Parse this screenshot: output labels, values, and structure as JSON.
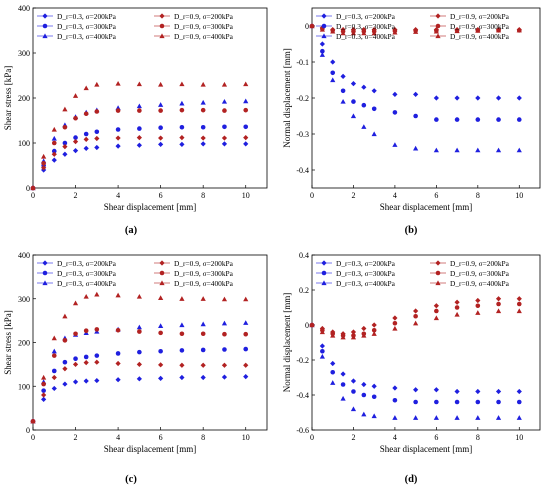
{
  "panel_labels": [
    "(a)",
    "(b)",
    "(c)",
    "(d)"
  ],
  "chart_data": [
    {
      "type": "scatter",
      "panel": "(a)",
      "xlabel": "Shear displacement [mm]",
      "ylabel": "Shear stress [kPa]",
      "xlim": [
        0,
        11
      ],
      "ylim": [
        0,
        400
      ],
      "xticks": [
        0,
        2,
        4,
        6,
        8,
        10
      ],
      "yticks": [
        0,
        100,
        200,
        300,
        400
      ],
      "legend_position": "top",
      "series": [
        {
          "name": "D_r=0.3, σ=200kPa",
          "symbol": "diamond",
          "color": "#1f1fdf",
          "x": [
            0,
            0.5,
            1,
            1.5,
            2,
            2.5,
            3,
            4,
            5,
            6,
            7,
            8,
            9,
            10
          ],
          "y": [
            0,
            40,
            62,
            75,
            83,
            88,
            90,
            93,
            95,
            97,
            97,
            98,
            98,
            98
          ]
        },
        {
          "name": "D_r=0.3, σ=300kPa",
          "symbol": "circle",
          "color": "#1f1fdf",
          "x": [
            0,
            0.5,
            1,
            1.5,
            2,
            2.5,
            3,
            4,
            5,
            6,
            7,
            8,
            9,
            10
          ],
          "y": [
            0,
            50,
            82,
            100,
            112,
            120,
            125,
            130,
            132,
            134,
            135,
            135,
            136,
            136
          ]
        },
        {
          "name": "D_r=0.3, σ=400kPa",
          "symbol": "triangle",
          "color": "#1f1fdf",
          "x": [
            0,
            0.5,
            1,
            1.5,
            2,
            2.5,
            3,
            4,
            5,
            6,
            7,
            8,
            9,
            10
          ],
          "y": [
            0,
            60,
            110,
            140,
            158,
            168,
            173,
            178,
            182,
            185,
            188,
            190,
            192,
            193
          ]
        },
        {
          "name": "D_r=0.9, σ=200kPa",
          "symbol": "diamond",
          "color": "#b22222",
          "x": [
            0,
            0.5,
            1,
            1.5,
            2,
            2.5,
            3,
            4,
            5,
            6,
            7,
            8,
            9,
            10
          ],
          "y": [
            0,
            45,
            75,
            92,
            103,
            108,
            110,
            111,
            112,
            111,
            112,
            111,
            111,
            112
          ]
        },
        {
          "name": "D_r=0.9, σ=300kPa",
          "symbol": "circle",
          "color": "#b22222",
          "x": [
            0,
            0.5,
            1,
            1.5,
            2,
            2.5,
            3,
            4,
            5,
            6,
            7,
            8,
            9,
            10
          ],
          "y": [
            0,
            55,
            100,
            135,
            155,
            165,
            170,
            172,
            172,
            172,
            173,
            173,
            172,
            173
          ]
        },
        {
          "name": "D_r=0.9, σ=400kPa",
          "symbol": "triangle",
          "color": "#b22222",
          "x": [
            0,
            0.5,
            1,
            1.5,
            2,
            2.5,
            3,
            4,
            5,
            6,
            7,
            8,
            9,
            10
          ],
          "y": [
            0,
            70,
            130,
            175,
            205,
            222,
            230,
            232,
            231,
            230,
            231,
            230,
            230,
            231
          ]
        }
      ]
    },
    {
      "type": "scatter",
      "panel": "(b)",
      "xlabel": "Shear displacement [mm]",
      "ylabel": "Normal displacement [mm]",
      "xlim": [
        0,
        11
      ],
      "ylim": [
        -0.45,
        0.05
      ],
      "xticks": [
        0,
        2,
        4,
        6,
        8,
        10
      ],
      "yticks": [
        0.0,
        -0.1,
        -0.2,
        -0.3,
        -0.4
      ],
      "legend_position": "top",
      "series": [
        {
          "name": "D_r=0.3, σ=200kPa",
          "symbol": "diamond",
          "color": "#1f1fdf",
          "x": [
            0,
            0.5,
            1,
            1.5,
            2,
            2.5,
            3,
            4,
            5,
            6,
            7,
            8,
            9,
            10
          ],
          "y": [
            0,
            -0.05,
            -0.1,
            -0.14,
            -0.16,
            -0.17,
            -0.18,
            -0.19,
            -0.19,
            -0.2,
            -0.2,
            -0.2,
            -0.2,
            -0.2
          ]
        },
        {
          "name": "D_r=0.3, σ=300kPa",
          "symbol": "circle",
          "color": "#1f1fdf",
          "x": [
            0,
            0.5,
            1,
            1.5,
            2,
            2.5,
            3,
            4,
            5,
            6,
            7,
            8,
            9,
            10
          ],
          "y": [
            0,
            -0.07,
            -0.13,
            -0.18,
            -0.21,
            -0.22,
            -0.23,
            -0.24,
            -0.25,
            -0.26,
            -0.26,
            -0.26,
            -0.26,
            -0.26
          ]
        },
        {
          "name": "D_r=0.3, σ=400kPa",
          "symbol": "triangle",
          "color": "#1f1fdf",
          "x": [
            0,
            0.5,
            1,
            1.5,
            2,
            2.5,
            3,
            4,
            5,
            6,
            7,
            8,
            9,
            10
          ],
          "y": [
            0,
            -0.08,
            -0.15,
            -0.21,
            -0.25,
            -0.28,
            -0.3,
            -0.33,
            -0.34,
            -0.345,
            -0.345,
            -0.345,
            -0.345,
            -0.345
          ]
        },
        {
          "name": "D_r=0.9, σ=200kPa",
          "symbol": "diamond",
          "color": "#b22222",
          "x": [
            0,
            0.5,
            1,
            1.5,
            2,
            2.5,
            3,
            4,
            5,
            6,
            7,
            8,
            9,
            10
          ],
          "y": [
            0,
            -0.005,
            -0.01,
            -0.01,
            -0.01,
            -0.01,
            -0.01,
            -0.01,
            -0.01,
            -0.01,
            -0.01,
            -0.01,
            -0.01,
            -0.01
          ]
        },
        {
          "name": "D_r=0.9, σ=300kPa",
          "symbol": "circle",
          "color": "#b22222",
          "x": [
            0,
            0.5,
            1,
            1.5,
            2,
            2.5,
            3,
            4,
            5,
            6,
            7,
            8,
            9,
            10
          ],
          "y": [
            0,
            -0.008,
            -0.012,
            -0.015,
            -0.015,
            -0.015,
            -0.015,
            -0.014,
            -0.013,
            -0.013,
            -0.012,
            -0.012,
            -0.012,
            -0.012
          ]
        },
        {
          "name": "D_r=0.9, σ=400kPa",
          "symbol": "triangle",
          "color": "#b22222",
          "x": [
            0,
            0.5,
            1,
            1.5,
            2,
            2.5,
            3,
            4,
            5,
            6,
            7,
            8,
            9,
            10
          ],
          "y": [
            0,
            -0.01,
            -0.015,
            -0.02,
            -0.02,
            -0.02,
            -0.02,
            -0.018,
            -0.016,
            -0.015,
            -0.014,
            -0.013,
            -0.012,
            -0.012
          ]
        }
      ]
    },
    {
      "type": "scatter",
      "panel": "(c)",
      "xlabel": "Shear displacement [mm]",
      "ylabel": "Shear stress [kPa]",
      "xlim": [
        0,
        11
      ],
      "ylim": [
        0,
        400
      ],
      "xticks": [
        0,
        2,
        4,
        6,
        8,
        10
      ],
      "yticks": [
        0,
        100,
        200,
        300,
        400
      ],
      "legend_position": "top",
      "series": [
        {
          "name": "D_r=0.3, σ=200kPa",
          "symbol": "diamond",
          "color": "#1f1fdf",
          "x": [
            0,
            0.5,
            1,
            1.5,
            2,
            2.5,
            3,
            4,
            5,
            6,
            7,
            8,
            9,
            10
          ],
          "y": [
            20,
            70,
            95,
            105,
            110,
            112,
            113,
            115,
            117,
            118,
            120,
            120,
            121,
            122
          ]
        },
        {
          "name": "D_r=0.3, σ=300kPa",
          "symbol": "circle",
          "color": "#1f1fdf",
          "x": [
            0,
            0.5,
            1,
            1.5,
            2,
            2.5,
            3,
            4,
            5,
            6,
            7,
            8,
            9,
            10
          ],
          "y": [
            20,
            90,
            135,
            155,
            163,
            167,
            170,
            175,
            178,
            180,
            182,
            183,
            184,
            185
          ]
        },
        {
          "name": "D_r=0.3, σ=400kPa",
          "symbol": "triangle",
          "color": "#1f1fdf",
          "x": [
            0,
            0.5,
            1,
            1.5,
            2,
            2.5,
            3,
            4,
            5,
            6,
            7,
            8,
            9,
            10
          ],
          "y": [
            20,
            110,
            180,
            210,
            218,
            222,
            225,
            230,
            235,
            238,
            240,
            242,
            244,
            245
          ]
        },
        {
          "name": "D_r=0.9, σ=200kPa",
          "symbol": "diamond",
          "color": "#b22222",
          "x": [
            0,
            0.5,
            1,
            1.5,
            2,
            2.5,
            3,
            4,
            5,
            6,
            7,
            8,
            9,
            10
          ],
          "y": [
            20,
            80,
            120,
            140,
            150,
            154,
            155,
            152,
            150,
            149,
            148,
            148,
            148,
            148
          ]
        },
        {
          "name": "D_r=0.9, σ=300kPa",
          "symbol": "circle",
          "color": "#b22222",
          "x": [
            0,
            0.5,
            1,
            1.5,
            2,
            2.5,
            3,
            4,
            5,
            6,
            7,
            8,
            9,
            10
          ],
          "y": [
            20,
            105,
            170,
            205,
            220,
            227,
            230,
            228,
            225,
            222,
            220,
            220,
            219,
            219
          ]
        },
        {
          "name": "D_r=0.9, σ=400kPa",
          "symbol": "triangle",
          "color": "#b22222",
          "x": [
            0,
            0.5,
            1,
            1.5,
            2,
            2.5,
            3,
            4,
            5,
            6,
            7,
            8,
            9,
            10
          ],
          "y": [
            20,
            120,
            210,
            260,
            290,
            305,
            310,
            308,
            305,
            302,
            300,
            300,
            299,
            299
          ]
        }
      ]
    },
    {
      "type": "scatter",
      "panel": "(d)",
      "xlabel": "Shear displacement [mm]",
      "ylabel": "Normal displacement [mm]",
      "xlim": [
        0,
        11
      ],
      "ylim": [
        -0.6,
        0.4
      ],
      "xticks": [
        0,
        2,
        4,
        6,
        8,
        10
      ],
      "yticks": [
        0.4,
        0.2,
        0.0,
        -0.2,
        -0.4,
        -0.6
      ],
      "legend_position": "top",
      "series": [
        {
          "name": "D_r=0.3, σ=200kPa",
          "symbol": "diamond",
          "color": "#1f1fdf",
          "x": [
            0,
            0.5,
            1,
            1.5,
            2,
            2.5,
            3,
            4,
            5,
            6,
            7,
            8,
            9,
            10
          ],
          "y": [
            0,
            -0.12,
            -0.22,
            -0.28,
            -0.32,
            -0.34,
            -0.35,
            -0.36,
            -0.37,
            -0.37,
            -0.38,
            -0.38,
            -0.38,
            -0.38
          ]
        },
        {
          "name": "D_r=0.3, σ=300kPa",
          "symbol": "circle",
          "color": "#1f1fdf",
          "x": [
            0,
            0.5,
            1,
            1.5,
            2,
            2.5,
            3,
            4,
            5,
            6,
            7,
            8,
            9,
            10
          ],
          "y": [
            0,
            -0.15,
            -0.27,
            -0.34,
            -0.38,
            -0.4,
            -0.41,
            -0.43,
            -0.44,
            -0.44,
            -0.44,
            -0.44,
            -0.44,
            -0.44
          ]
        },
        {
          "name": "D_r=0.3, σ=400kPa",
          "symbol": "triangle",
          "color": "#1f1fdf",
          "x": [
            0,
            0.5,
            1,
            1.5,
            2,
            2.5,
            3,
            4,
            5,
            6,
            7,
            8,
            9,
            10
          ],
          "y": [
            0,
            -0.18,
            -0.33,
            -0.42,
            -0.48,
            -0.51,
            -0.52,
            -0.53,
            -0.53,
            -0.53,
            -0.53,
            -0.53,
            -0.53,
            -0.53
          ]
        },
        {
          "name": "D_r=0.9, σ=200kPa",
          "symbol": "diamond",
          "color": "#b22222",
          "x": [
            0,
            0.5,
            1,
            1.5,
            2,
            2.5,
            3,
            4,
            5,
            6,
            7,
            8,
            9,
            10
          ],
          "y": [
            0,
            -0.02,
            -0.04,
            -0.05,
            -0.04,
            -0.02,
            0.0,
            0.04,
            0.08,
            0.11,
            0.13,
            0.14,
            0.15,
            0.15
          ]
        },
        {
          "name": "D_r=0.9, σ=300kPa",
          "symbol": "circle",
          "color": "#b22222",
          "x": [
            0,
            0.5,
            1,
            1.5,
            2,
            2.5,
            3,
            4,
            5,
            6,
            7,
            8,
            9,
            10
          ],
          "y": [
            0,
            -0.03,
            -0.05,
            -0.06,
            -0.06,
            -0.05,
            -0.03,
            0.01,
            0.05,
            0.08,
            0.1,
            0.11,
            0.12,
            0.12
          ]
        },
        {
          "name": "D_r=0.9, σ=400kPa",
          "symbol": "triangle",
          "color": "#b22222",
          "x": [
            0,
            0.5,
            1,
            1.5,
            2,
            2.5,
            3,
            4,
            5,
            6,
            7,
            8,
            9,
            10
          ],
          "y": [
            0,
            -0.04,
            -0.06,
            -0.07,
            -0.07,
            -0.06,
            -0.05,
            -0.02,
            0.01,
            0.04,
            0.06,
            0.07,
            0.08,
            0.08
          ]
        }
      ]
    }
  ]
}
